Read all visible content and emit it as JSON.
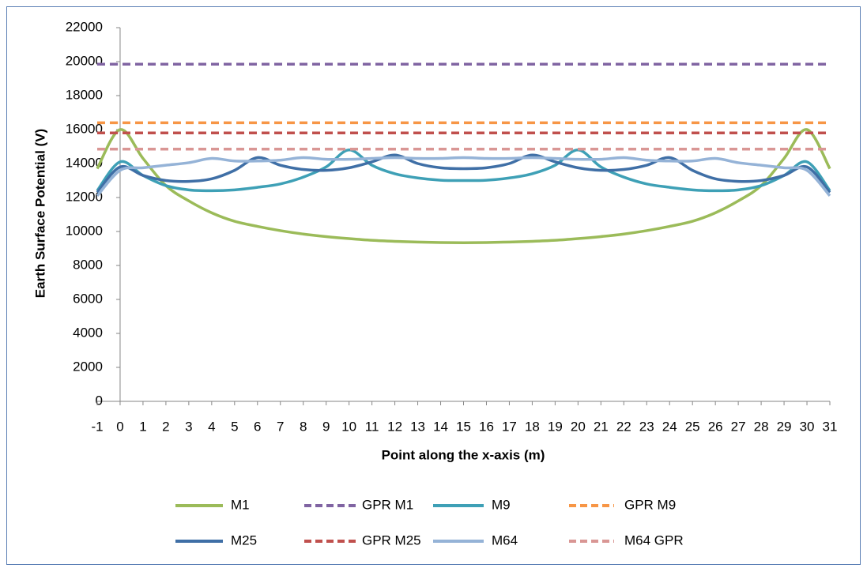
{
  "chart_data": {
    "type": "line",
    "x_label": "Point along the x-axis (m)",
    "y_label": "Earth Surface Potential (V)",
    "x": [
      -1,
      0,
      1,
      2,
      3,
      4,
      5,
      6,
      7,
      8,
      9,
      10,
      11,
      12,
      13,
      14,
      15,
      16,
      17,
      18,
      19,
      20,
      21,
      22,
      23,
      24,
      25,
      26,
      27,
      28,
      29,
      30,
      31
    ],
    "xlim": [
      -1,
      31
    ],
    "xticks": [
      -1,
      0,
      1,
      2,
      3,
      4,
      5,
      6,
      7,
      8,
      9,
      10,
      11,
      12,
      13,
      14,
      15,
      16,
      17,
      18,
      19,
      20,
      21,
      22,
      23,
      24,
      25,
      26,
      27,
      28,
      29,
      30,
      31
    ],
    "ylim": [
      0,
      22000
    ],
    "yticks": [
      0,
      2000,
      4000,
      6000,
      8000,
      10000,
      12000,
      14000,
      16000,
      18000,
      20000,
      22000
    ],
    "series": [
      {
        "name": "M1",
        "color": "#9bbb59",
        "dashed": false,
        "values": [
          13700,
          16000,
          14300,
          12700,
          11800,
          11100,
          10600,
          10300,
          10050,
          9850,
          9700,
          9580,
          9480,
          9420,
          9380,
          9350,
          9340,
          9350,
          9380,
          9420,
          9480,
          9580,
          9700,
          9850,
          10050,
          10300,
          10600,
          11100,
          11800,
          12700,
          14300,
          16000,
          13700
        ]
      },
      {
        "name": "GPR M1",
        "color": "#8064a2",
        "dashed": true,
        "values": [
          19850,
          19850,
          19850,
          19850,
          19850,
          19850,
          19850,
          19850,
          19850,
          19850,
          19850,
          19850,
          19850,
          19850,
          19850,
          19850,
          19850,
          19850,
          19850,
          19850,
          19850,
          19850,
          19850,
          19850,
          19850,
          19850,
          19850,
          19850,
          19850,
          19850,
          19850,
          19850,
          19850
        ]
      },
      {
        "name": "M9",
        "color": "#3ea0b6",
        "dashed": false,
        "values": [
          12400,
          14100,
          13300,
          12700,
          12450,
          12400,
          12450,
          12600,
          12800,
          13200,
          13800,
          14800,
          13900,
          13400,
          13150,
          13020,
          13000,
          13020,
          13150,
          13400,
          13900,
          14800,
          13800,
          13200,
          12800,
          12600,
          12450,
          12400,
          12450,
          12700,
          13300,
          14100,
          12400
        ]
      },
      {
        "name": "GPR M9",
        "color": "#f79646",
        "dashed": true,
        "values": [
          16400,
          16400,
          16400,
          16400,
          16400,
          16400,
          16400,
          16400,
          16400,
          16400,
          16400,
          16400,
          16400,
          16400,
          16400,
          16400,
          16400,
          16400,
          16400,
          16400,
          16400,
          16400,
          16400,
          16400,
          16400,
          16400,
          16400,
          16400,
          16400,
          16400,
          16400,
          16400,
          16400
        ]
      },
      {
        "name": "M25",
        "color": "#3f6fa6",
        "dashed": false,
        "values": [
          12300,
          13800,
          13300,
          13000,
          12950,
          13100,
          13600,
          14350,
          13900,
          13650,
          13600,
          13750,
          14100,
          14500,
          14000,
          13750,
          13700,
          13750,
          14000,
          14500,
          14100,
          13750,
          13600,
          13650,
          13900,
          14350,
          13600,
          13100,
          12950,
          13000,
          13300,
          13800,
          12300
        ]
      },
      {
        "name": "GPR M25",
        "color": "#c0504d",
        "dashed": true,
        "values": [
          15800,
          15800,
          15800,
          15800,
          15800,
          15800,
          15800,
          15800,
          15800,
          15800,
          15800,
          15800,
          15800,
          15800,
          15800,
          15800,
          15800,
          15800,
          15800,
          15800,
          15800,
          15800,
          15800,
          15800,
          15800,
          15800,
          15800,
          15800,
          15800,
          15800,
          15800,
          15800,
          15800
        ]
      },
      {
        "name": "M64",
        "color": "#95b3d7",
        "dashed": false,
        "values": [
          12100,
          13600,
          13750,
          13900,
          14050,
          14300,
          14150,
          14150,
          14200,
          14350,
          14250,
          14250,
          14300,
          14350,
          14300,
          14300,
          14350,
          14300,
          14300,
          14350,
          14300,
          14250,
          14250,
          14350,
          14200,
          14150,
          14150,
          14300,
          14050,
          13900,
          13750,
          13600,
          12100
        ]
      },
      {
        "name": "M64 GPR",
        "color": "#d99694",
        "dashed": true,
        "values": [
          14850,
          14850,
          14850,
          14850,
          14850,
          14850,
          14850,
          14850,
          14850,
          14850,
          14850,
          14850,
          14850,
          14850,
          14850,
          14850,
          14850,
          14850,
          14850,
          14850,
          14850,
          14850,
          14850,
          14850,
          14850,
          14850,
          14850,
          14850,
          14850,
          14850,
          14850,
          14850,
          14850
        ]
      }
    ]
  }
}
